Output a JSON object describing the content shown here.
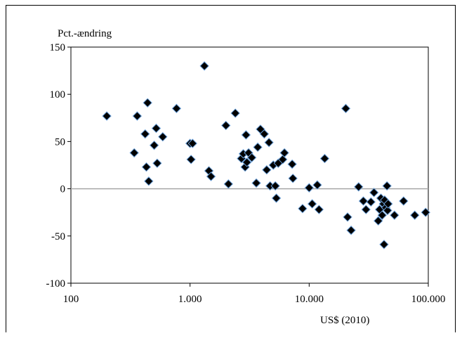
{
  "chart_data": {
    "type": "scatter",
    "title": "",
    "ylabel": "Pct.-ændring",
    "xlabel": "US$ (2010)",
    "xscale": "log",
    "xlim": [
      100,
      100000
    ],
    "ylim": [
      -100,
      150
    ],
    "x_ticks": [
      100,
      1000,
      10000,
      100000
    ],
    "x_tick_labels": [
      "100",
      "1.000",
      "10.000",
      "100.000"
    ],
    "y_ticks": [
      -100,
      -50,
      0,
      50,
      100,
      150
    ],
    "y_tick_labels": [
      "-100",
      "-50",
      "0",
      "50",
      "100",
      "150"
    ],
    "grid": false,
    "zero_line": true,
    "marker": "diamond",
    "marker_fill": "#000000",
    "marker_edge": "#6a9fd8",
    "points": [
      {
        "x": 200,
        "y": 77
      },
      {
        "x": 340,
        "y": 38
      },
      {
        "x": 360,
        "y": 77
      },
      {
        "x": 420,
        "y": 58
      },
      {
        "x": 430,
        "y": 23
      },
      {
        "x": 440,
        "y": 91
      },
      {
        "x": 450,
        "y": 8
      },
      {
        "x": 500,
        "y": 46
      },
      {
        "x": 520,
        "y": 64
      },
      {
        "x": 530,
        "y": 27
      },
      {
        "x": 590,
        "y": 55
      },
      {
        "x": 770,
        "y": 85
      },
      {
        "x": 1000,
        "y": 48
      },
      {
        "x": 1020,
        "y": 31
      },
      {
        "x": 1050,
        "y": 48
      },
      {
        "x": 1320,
        "y": 130
      },
      {
        "x": 1440,
        "y": 19
      },
      {
        "x": 1500,
        "y": 13
      },
      {
        "x": 2000,
        "y": 67
      },
      {
        "x": 2100,
        "y": 5
      },
      {
        "x": 2400,
        "y": 80
      },
      {
        "x": 2700,
        "y": 32
      },
      {
        "x": 2800,
        "y": 37
      },
      {
        "x": 2900,
        "y": 23
      },
      {
        "x": 2950,
        "y": 57
      },
      {
        "x": 3000,
        "y": 28
      },
      {
        "x": 3100,
        "y": 38
      },
      {
        "x": 3300,
        "y": 33
      },
      {
        "x": 3600,
        "y": 6
      },
      {
        "x": 3700,
        "y": 44
      },
      {
        "x": 3900,
        "y": 63
      },
      {
        "x": 4200,
        "y": 58
      },
      {
        "x": 4400,
        "y": 20
      },
      {
        "x": 4600,
        "y": 49
      },
      {
        "x": 4700,
        "y": 3
      },
      {
        "x": 5000,
        "y": 25
      },
      {
        "x": 5200,
        "y": 3
      },
      {
        "x": 5300,
        "y": -10
      },
      {
        "x": 5500,
        "y": 27
      },
      {
        "x": 6000,
        "y": 31
      },
      {
        "x": 6200,
        "y": 38
      },
      {
        "x": 7200,
        "y": 26
      },
      {
        "x": 7300,
        "y": 11
      },
      {
        "x": 8800,
        "y": -21
      },
      {
        "x": 10000,
        "y": 1
      },
      {
        "x": 10600,
        "y": -16
      },
      {
        "x": 11700,
        "y": 4
      },
      {
        "x": 12100,
        "y": -22
      },
      {
        "x": 13500,
        "y": 32
      },
      {
        "x": 20300,
        "y": 85
      },
      {
        "x": 21000,
        "y": -30
      },
      {
        "x": 22500,
        "y": -44
      },
      {
        "x": 26000,
        "y": 2
      },
      {
        "x": 28500,
        "y": -13
      },
      {
        "x": 30000,
        "y": -22
      },
      {
        "x": 33000,
        "y": -14
      },
      {
        "x": 35000,
        "y": -4
      },
      {
        "x": 38000,
        "y": -34
      },
      {
        "x": 39000,
        "y": -22
      },
      {
        "x": 40000,
        "y": -10
      },
      {
        "x": 41000,
        "y": -28
      },
      {
        "x": 42000,
        "y": -16
      },
      {
        "x": 42500,
        "y": -59
      },
      {
        "x": 43000,
        "y": -12
      },
      {
        "x": 44000,
        "y": -20
      },
      {
        "x": 45000,
        "y": 3
      },
      {
        "x": 45500,
        "y": -23
      },
      {
        "x": 46000,
        "y": -16
      },
      {
        "x": 52000,
        "y": -28
      },
      {
        "x": 62000,
        "y": -13
      },
      {
        "x": 77000,
        "y": -28
      },
      {
        "x": 95000,
        "y": -25
      }
    ]
  }
}
